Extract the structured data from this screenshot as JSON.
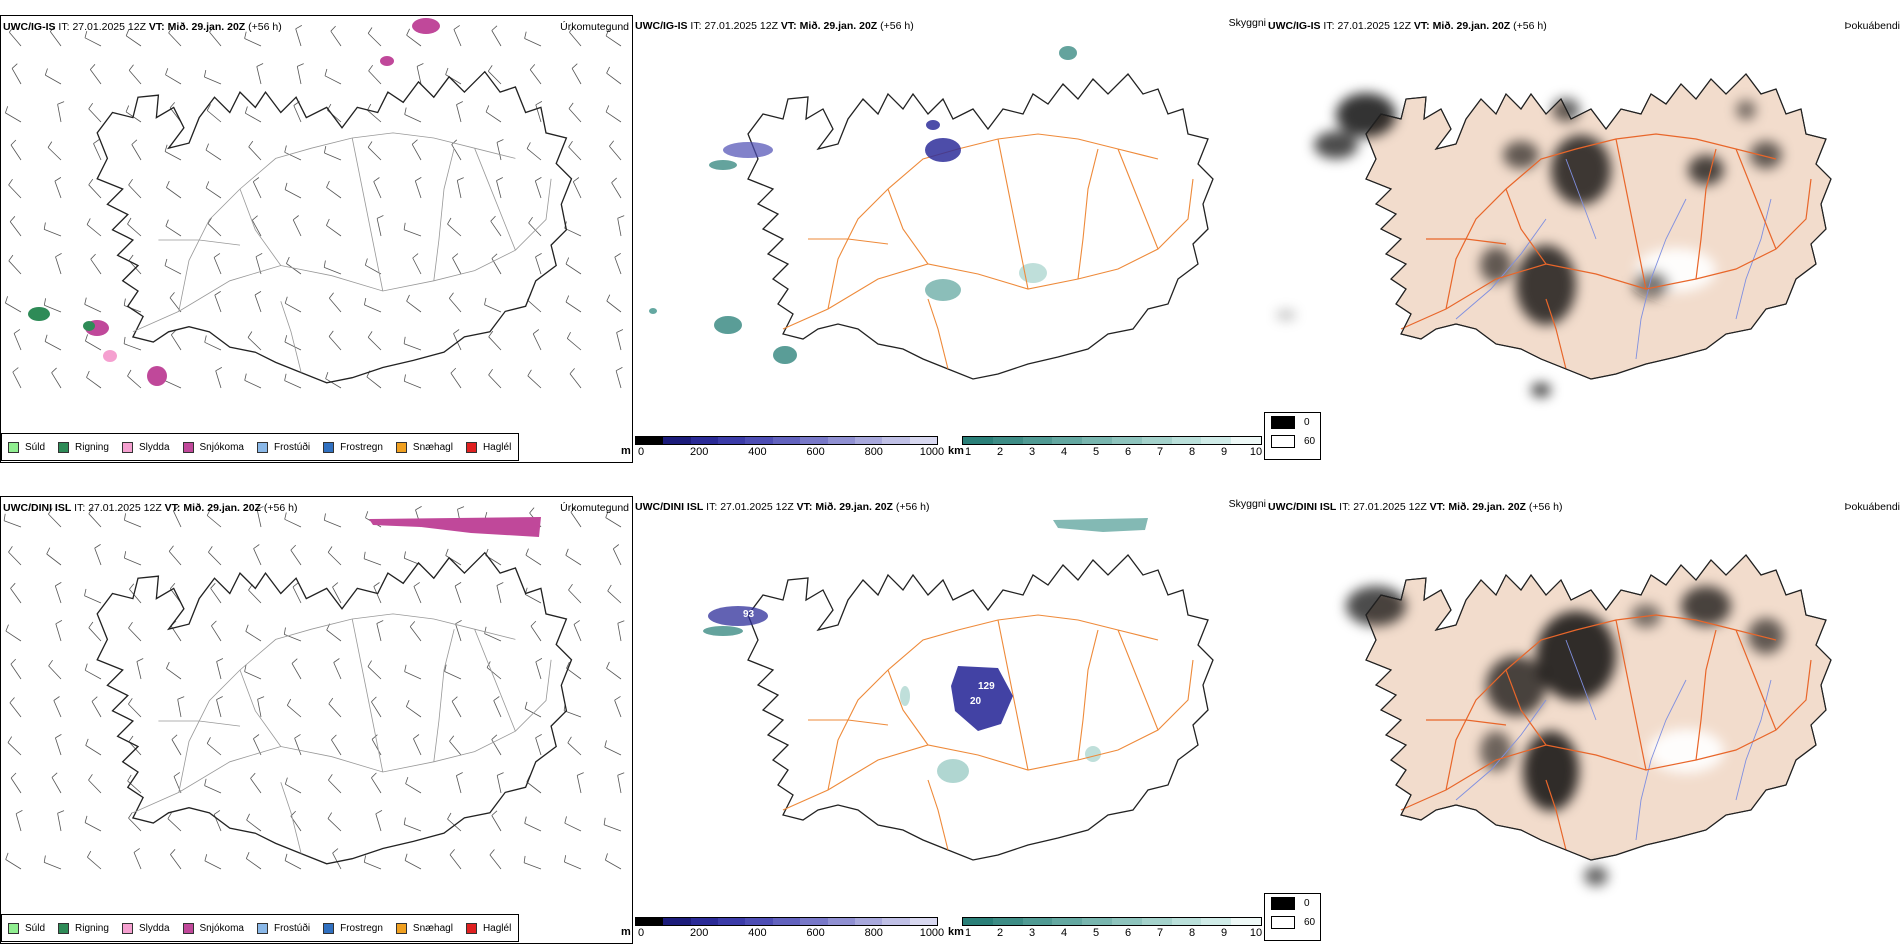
{
  "rows": [
    {
      "model": "UWC/IG-IS",
      "issue_label": "IT:",
      "issue_time": "27.01.2025 12Z",
      "valid_label": "VT:",
      "valid_time": "Mið. 29.jan. 20Z",
      "lead": "(+56 h)"
    },
    {
      "model": "UWC/DINI ISL",
      "issue_label": "IT:",
      "issue_time": "27.01.2025 12Z",
      "valid_label": "VT:",
      "valid_time": "Mið. 29.jan. 20Z",
      "lead": "(+56 h)"
    }
  ],
  "panel_titles": {
    "precip_type": "Úrkomutegund",
    "visibility": "Skyggni",
    "fog": "Þokuábendi"
  },
  "precip_legend": [
    {
      "label": "Súld",
      "color": "#90ee90"
    },
    {
      "label": "Rigning",
      "color": "#2e8b57"
    },
    {
      "label": "Slydda",
      "color": "#f5a0d0"
    },
    {
      "label": "Snjókoma",
      "color": "#c0489a"
    },
    {
      "label": "Frostúði",
      "color": "#8ab8e8"
    },
    {
      "label": "Frostregn",
      "color": "#3070c0"
    },
    {
      "label": "Snæhagl",
      "color": "#f0a020"
    },
    {
      "label": "Haglél",
      "color": "#e02020"
    }
  ],
  "visibility_m_bar": {
    "unit": "m",
    "ticks": [
      "0",
      "200",
      "400",
      "600",
      "800",
      "1000"
    ],
    "colors": [
      "#000000",
      "#1b1b7a",
      "#2a2a96",
      "#3b3ba8",
      "#4d4db4",
      "#6262be",
      "#7878c8",
      "#9090d2",
      "#a8a8dc",
      "#c0c0e6",
      "#d8d8f0"
    ]
  },
  "visibility_km_bar": {
    "unit": "km",
    "ticks": [
      "1",
      "2",
      "3",
      "4",
      "5",
      "6",
      "7",
      "8",
      "9",
      "10"
    ],
    "colors": [
      "#2a7f78",
      "#3d8c85",
      "#509a93",
      "#64a8a1",
      "#79b6af",
      "#8ec4bd",
      "#a4d2cb",
      "#bae0da",
      "#d0ece8",
      "#eef9f7"
    ]
  },
  "fog_legend": [
    {
      "value": "0",
      "color": "#000000"
    },
    {
      "value": "60",
      "color": "#ffffff"
    }
  ],
  "map_colors": {
    "land_fill": "#f2dccc",
    "roads": "#e8662a",
    "roads_vis": "#ee8a3a",
    "rivers": "#7f8fe0",
    "coast": "#222222",
    "snow": "#c0489a",
    "rain": "#2e8b57",
    "vis_low": "#2e2e9a",
    "vis_km": "#3d8c85"
  },
  "point_values": {
    "row1": [],
    "row2": [
      "93",
      "129",
      "20"
    ]
  }
}
